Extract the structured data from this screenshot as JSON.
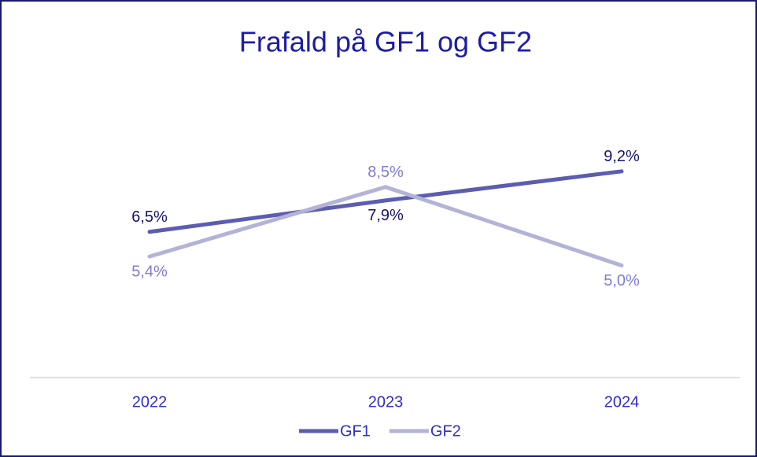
{
  "chart_data": {
    "type": "line",
    "title": "Frafald på GF1 og GF2",
    "categories": [
      "2022",
      "2023",
      "2024"
    ],
    "series": [
      {
        "name": "GF1",
        "color": "#5c5cb2",
        "values": [
          6.5,
          7.9,
          9.2
        ],
        "value_labels": [
          "6,5%",
          "7,9%",
          "9,2%"
        ]
      },
      {
        "name": "GF2",
        "color": "#b3b3d6",
        "values": [
          5.4,
          8.5,
          5.0
        ],
        "value_labels": [
          "5,4%",
          "8,5%",
          "5,0%"
        ]
      }
    ],
    "ylim": [
      0,
      10
    ],
    "legend": "bottom"
  }
}
